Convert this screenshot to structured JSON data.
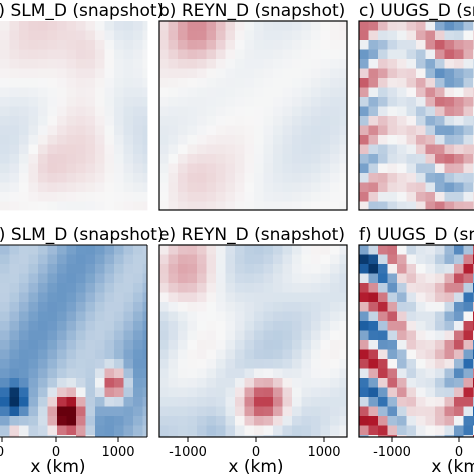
{
  "chart_data": {
    "type": "heatmap",
    "colormap": "red-blue diverging (positive red, negative blue)",
    "panels": [
      {
        "id": "a",
        "title": "a) SLM_D (snapshot)",
        "xlabel": "",
        "xticks": [],
        "style": "smooth, low amplitude; faint red and blue patches",
        "visible_portion": "right part of panel",
        "amplitude": 0.18
      },
      {
        "id": "b",
        "title": "b) REYN_D (snapshot)",
        "xlabel": "",
        "xticks": [],
        "style": "smooth, low amplitude; red patch near upper-left",
        "visible_portion": "full panel",
        "amplitude": 0.25
      },
      {
        "id": "c",
        "title": "c) UUGS_D (snapshot)",
        "xlabel": "",
        "xticks": [],
        "style": "noisy, banded red/blue stripes, medium amplitude",
        "visible_portion": "left part of panel",
        "amplitude": 0.6
      },
      {
        "id": "d",
        "title": "d) SLM_D (snapshot)",
        "xlabel": "x  (km)",
        "xticks": [
          "0",
          "0",
          "1000"
        ],
        "style": "blue background with strong dark-red blob in lower-left",
        "visible_portion": "right part of panel",
        "amplitude": 1.0
      },
      {
        "id": "e",
        "title": "e) REYN_D (snapshot)",
        "xlabel": "x  (km)",
        "xticks": [
          "-1000",
          "0",
          "1000"
        ],
        "style": "smooth, mostly light; red blob in lower-center",
        "visible_portion": "full panel",
        "amplitude": 0.55
      },
      {
        "id": "f",
        "title": "f) UUGS_D (snapshot)",
        "xlabel": "x  (km)",
        "xticks": [
          "-1000",
          "0"
        ],
        "style": "noisy, strong red/blue stripes",
        "visible_portion": "left part of panel",
        "amplitude": 0.85
      }
    ]
  }
}
